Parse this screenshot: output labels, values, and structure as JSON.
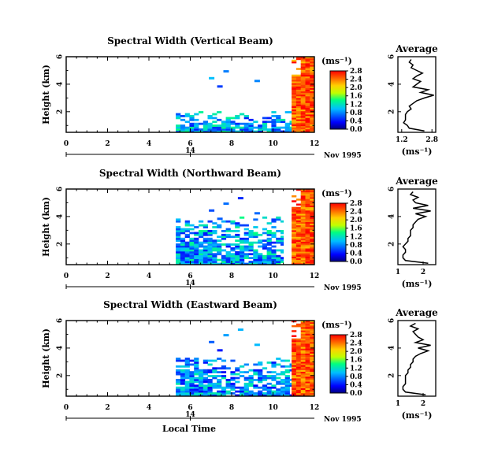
{
  "figure": {
    "date_label": "Nov 1995",
    "day_label": "14",
    "time_axis_label": "Local Time",
    "unit_label": "(ms⁻¹)",
    "average_title": "Average",
    "average_xlabel": "(ms⁻¹)"
  },
  "chart_data": [
    {
      "type": "heatmap",
      "title": "Spectral Width (Vertical Beam)",
      "ylabel": "Height (km)",
      "xlabel": "Local Time",
      "x_ticks": [
        "0",
        "2",
        "4",
        "6",
        "8",
        "10",
        "12"
      ],
      "y_ticks": [
        "2",
        "4",
        "6"
      ],
      "xlim": [
        0,
        12
      ],
      "ylim": [
        0.5,
        6
      ],
      "colorbar": {
        "label": "(ms⁻¹)",
        "ticks": [
          "0.0",
          "0.4",
          "0.8",
          "1.2",
          "1.6",
          "2.0",
          "2.4",
          "2.8"
        ],
        "range": [
          0,
          2.8
        ]
      },
      "data_regions": [
        {
          "x": [
            5.3,
            11.0
          ],
          "y": [
            0.5,
            2.0
          ],
          "value_mean": 0.9,
          "description_values": "0.5-1.4"
        },
        {
          "x": [
            10.9,
            12.0
          ],
          "y": [
            0.5,
            6.0
          ],
          "value_mean": 2.5,
          "description_values": "2.2-2.8"
        }
      ],
      "average_profile": {
        "title": "Average",
        "xlabel": "(ms⁻¹)",
        "x_ticks": [
          "1.2",
          "2.8"
        ],
        "xlim": [
          1.0,
          3.0
        ],
        "y_ticks": [
          "2",
          "4",
          "6"
        ],
        "ylim": [
          0.5,
          6
        ],
        "height": [
          0.6,
          0.8,
          1.0,
          1.2,
          1.4,
          1.6,
          1.8,
          2.0,
          2.2,
          2.4,
          2.6,
          2.8,
          3.0,
          3.2,
          3.4,
          3.6,
          3.8,
          4.0,
          4.2,
          4.4,
          4.6,
          4.8,
          5.0,
          5.2,
          5.4,
          5.6,
          5.8
        ],
        "value": [
          2.4,
          1.6,
          1.5,
          1.3,
          1.4,
          1.4,
          1.4,
          1.5,
          1.7,
          1.6,
          1.8,
          2.0,
          2.4,
          2.9,
          2.2,
          2.6,
          1.8,
          2.0,
          2.2,
          1.8,
          2.0,
          2.3,
          2.0,
          1.7,
          1.8,
          1.6,
          1.7
        ]
      }
    },
    {
      "type": "heatmap",
      "title": "Spectral Width (Northward Beam)",
      "ylabel": "Height (km)",
      "xlabel": "Local Time",
      "x_ticks": [
        "0",
        "2",
        "4",
        "6",
        "8",
        "10",
        "12"
      ],
      "y_ticks": [
        "2",
        "4",
        "6"
      ],
      "xlim": [
        0,
        12
      ],
      "ylim": [
        0.5,
        6
      ],
      "colorbar": {
        "label": "(ms⁻¹)",
        "ticks": [
          "0.0",
          "0.4",
          "0.8",
          "1.2",
          "1.6",
          "2.0",
          "2.4",
          "2.8"
        ],
        "range": [
          0,
          2.8
        ]
      },
      "data_regions": [
        {
          "x": [
            5.3,
            10.5
          ],
          "y": [
            0.5,
            4.0
          ],
          "value_mean": 0.9,
          "description_values": "0.5-1.4"
        },
        {
          "x": [
            10.9,
            12.0
          ],
          "y": [
            0.5,
            6.0
          ],
          "value_mean": 2.5,
          "description_values": "2.2-2.8"
        }
      ],
      "average_profile": {
        "title": "Average",
        "xlabel": "(ms⁻¹)",
        "x_ticks": [
          "1",
          "2"
        ],
        "xlim": [
          1.0,
          2.5
        ],
        "y_ticks": [
          "2",
          "4",
          "6"
        ],
        "ylim": [
          0.5,
          6
        ],
        "height": [
          0.6,
          0.8,
          1.0,
          1.2,
          1.4,
          1.6,
          1.8,
          2.0,
          2.2,
          2.4,
          2.6,
          2.8,
          3.0,
          3.2,
          3.4,
          3.6,
          3.8,
          4.0,
          4.2,
          4.4,
          4.6,
          4.8,
          5.0,
          5.2,
          5.4,
          5.6,
          5.8
        ],
        "value": [
          2.2,
          1.3,
          1.2,
          1.2,
          1.3,
          1.3,
          1.2,
          1.3,
          1.4,
          1.4,
          1.5,
          1.5,
          1.5,
          1.6,
          1.6,
          1.7,
          1.8,
          2.1,
          1.7,
          2.3,
          1.6,
          2.2,
          1.7,
          1.6,
          1.8,
          1.5,
          1.6
        ]
      }
    },
    {
      "type": "heatmap",
      "title": "Spectral Width (Eastward Beam)",
      "ylabel": "Height (km)",
      "xlabel": "Local Time",
      "x_ticks": [
        "0",
        "2",
        "4",
        "6",
        "8",
        "10",
        "12"
      ],
      "y_ticks": [
        "2",
        "4",
        "6"
      ],
      "xlim": [
        0,
        12
      ],
      "ylim": [
        0.5,
        6
      ],
      "colorbar": {
        "label": "(ms⁻¹)",
        "ticks": [
          "0.0",
          "0.4",
          "0.8",
          "1.2",
          "1.6",
          "2.0",
          "2.4",
          "2.8"
        ],
        "range": [
          0,
          2.8
        ]
      },
      "data_regions": [
        {
          "x": [
            5.3,
            11.0
          ],
          "y": [
            0.5,
            3.2
          ],
          "value_mean": 0.8,
          "description_values": "0.5-1.3"
        },
        {
          "x": [
            10.9,
            12.0
          ],
          "y": [
            0.5,
            6.0
          ],
          "value_mean": 2.5,
          "description_values": "2.2-2.8"
        }
      ],
      "average_profile": {
        "title": "Average",
        "xlabel": "(ms⁻¹)",
        "x_ticks": [
          "1",
          "2"
        ],
        "xlim": [
          1.0,
          2.5
        ],
        "y_ticks": [
          "2",
          "4",
          "6"
        ],
        "ylim": [
          0.5,
          6
        ],
        "height": [
          0.6,
          0.8,
          1.0,
          1.2,
          1.4,
          1.6,
          1.8,
          2.0,
          2.2,
          2.4,
          2.6,
          2.8,
          3.0,
          3.2,
          3.4,
          3.6,
          3.8,
          4.0,
          4.2,
          4.4,
          4.6,
          4.8,
          5.0,
          5.2,
          5.4,
          5.6,
          5.8
        ],
        "value": [
          2.1,
          1.3,
          1.2,
          1.2,
          1.3,
          1.3,
          1.3,
          1.3,
          1.4,
          1.4,
          1.5,
          1.5,
          1.6,
          1.6,
          1.7,
          1.9,
          2.2,
          1.8,
          2.3,
          1.7,
          2.0,
          1.8,
          1.7,
          1.6,
          1.8,
          1.5,
          1.7
        ]
      }
    }
  ]
}
